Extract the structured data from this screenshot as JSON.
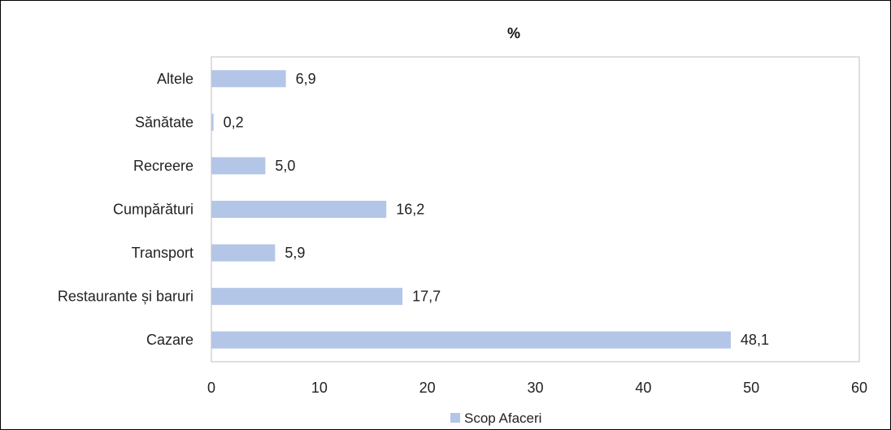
{
  "chart_data": {
    "type": "bar",
    "orientation": "horizontal",
    "title": "%",
    "categories": [
      "Altele",
      "Sănătate",
      "Recreere",
      "Cumpărături",
      "Transport",
      "Restaurante și baruri",
      "Cazare"
    ],
    "series": [
      {
        "name": "Scop Afaceri",
        "values": [
          6.9,
          0.2,
          5.0,
          16.2,
          5.9,
          17.7,
          48.1
        ],
        "value_labels": [
          "6,9",
          "0,2",
          "5,0",
          "16,2",
          "5,9",
          "17,7",
          "48,1"
        ],
        "color": "#B4C6E7"
      }
    ],
    "xlim": [
      0,
      60
    ],
    "x_ticks": [
      "0",
      "10",
      "20",
      "30",
      "40",
      "50",
      "60"
    ],
    "xlabel": "",
    "ylabel": "",
    "grid": false,
    "legend_position": "bottom"
  }
}
